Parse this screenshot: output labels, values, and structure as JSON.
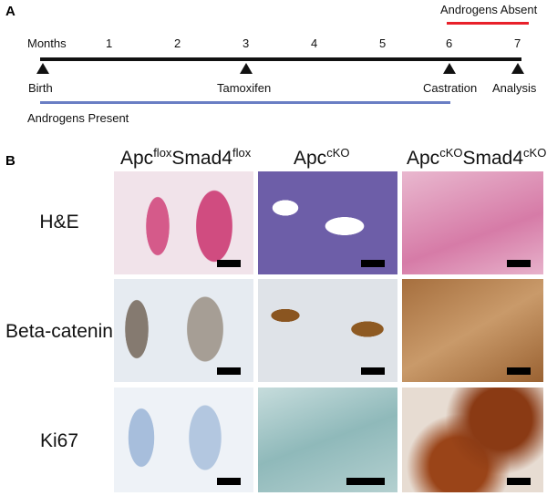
{
  "panel_a": {
    "label": "A",
    "months_label": "Months",
    "months": [
      "1",
      "2",
      "3",
      "4",
      "5",
      "6",
      "7"
    ],
    "events": [
      "Birth",
      "Tamoxifen",
      "Castration",
      "Analysis"
    ],
    "androgens_present": "Androgens Present",
    "androgens_absent": "Androgens Absent",
    "colors": {
      "present": "#6a7ec4",
      "absent": "#e8202a",
      "timeline": "#111111"
    }
  },
  "panel_b": {
    "label": "B",
    "columns": [
      {
        "base": "Apc",
        "sup1": "flox",
        "base2": "Smad4",
        "sup2": "flox"
      },
      {
        "base": "Apc",
        "sup1": "cKO",
        "base2": "",
        "sup2": ""
      },
      {
        "base": "Apc",
        "sup1": "cKO",
        "base2": "Smad4",
        "sup2": "cKO"
      }
    ],
    "rows": [
      "H&E",
      "Beta-catenin",
      "Ki67"
    ]
  }
}
